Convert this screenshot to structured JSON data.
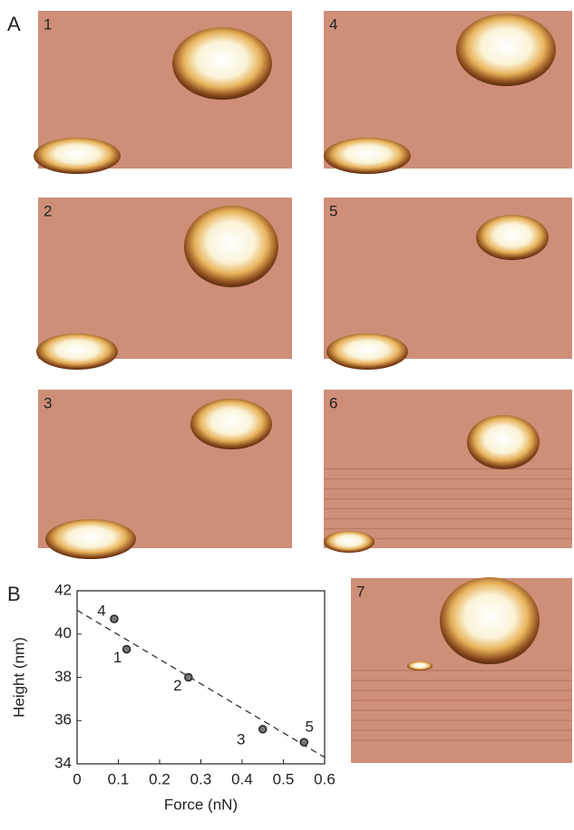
{
  "figure": {
    "panel_label": "A",
    "images": [
      {
        "label": "1"
      },
      {
        "label": "4"
      },
      {
        "label": "2"
      },
      {
        "label": "5"
      },
      {
        "label": "3"
      },
      {
        "label": "6"
      },
      {
        "label": "7"
      }
    ]
  },
  "chart_data": {
    "type": "scatter",
    "panel_label": "B",
    "x_label": "Force (nN)",
    "y_label": "Height (nm)",
    "series": [
      {
        "name": null,
        "color": "#222222",
        "x": [
          0.09,
          0.12,
          0.27,
          0.45,
          0.55
        ],
        "values": [
          40.7,
          39.3,
          38.0,
          35.6,
          35.0
        ],
        "point_labels": [
          "4",
          "1",
          "2",
          "3",
          "5"
        ]
      }
    ],
    "trend_line": {
      "x": [
        0,
        0.6
      ],
      "y": [
        41.1,
        34.3
      ]
    },
    "xlim": [
      0,
      0.6
    ],
    "xticks": [
      0,
      0.1,
      0.2,
      0.3,
      0.4,
      0.5,
      0.6
    ],
    "ylim": [
      34,
      42
    ],
    "yticks": [
      34,
      36,
      38,
      40,
      42
    ]
  }
}
